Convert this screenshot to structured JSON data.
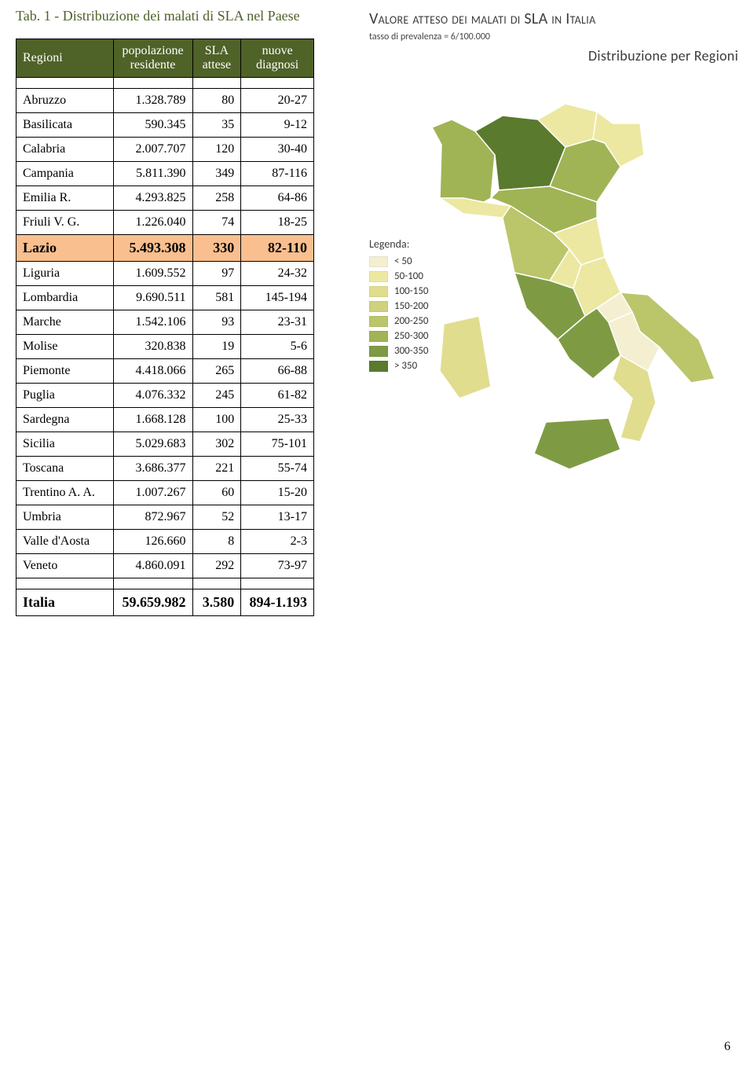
{
  "table": {
    "title": "Tab. 1 - Distribuzione dei malati di SLA nel Paese",
    "columns": [
      "Regioni",
      "popolazione residente",
      "SLA attese",
      "nuove diagnosi"
    ],
    "highlight_region": "Lazio",
    "rows": [
      {
        "region": "Abruzzo",
        "pop": "1.328.789",
        "sla": "80",
        "diag": "20-27"
      },
      {
        "region": "Basilicata",
        "pop": "590.345",
        "sla": "35",
        "diag": "9-12"
      },
      {
        "region": "Calabria",
        "pop": "2.007.707",
        "sla": "120",
        "diag": "30-40"
      },
      {
        "region": "Campania",
        "pop": "5.811.390",
        "sla": "349",
        "diag": "87-116"
      },
      {
        "region": "Emilia R.",
        "pop": "4.293.825",
        "sla": "258",
        "diag": "64-86"
      },
      {
        "region": "Friuli V. G.",
        "pop": "1.226.040",
        "sla": "74",
        "diag": "18-25"
      },
      {
        "region": "Lazio",
        "pop": "5.493.308",
        "sla": "330",
        "diag": "82-110"
      },
      {
        "region": "Liguria",
        "pop": "1.609.552",
        "sla": "97",
        "diag": "24-32"
      },
      {
        "region": "Lombardia",
        "pop": "9.690.511",
        "sla": "581",
        "diag": "145-194"
      },
      {
        "region": "Marche",
        "pop": "1.542.106",
        "sla": "93",
        "diag": "23-31"
      },
      {
        "region": "Molise",
        "pop": "320.838",
        "sla": "19",
        "diag": "5-6"
      },
      {
        "region": "Piemonte",
        "pop": "4.418.066",
        "sla": "265",
        "diag": "66-88"
      },
      {
        "region": "Puglia",
        "pop": "4.076.332",
        "sla": "245",
        "diag": "61-82"
      },
      {
        "region": "Sardegna",
        "pop": "1.668.128",
        "sla": "100",
        "diag": "25-33"
      },
      {
        "region": "Sicilia",
        "pop": "5.029.683",
        "sla": "302",
        "diag": "75-101"
      },
      {
        "region": "Toscana",
        "pop": "3.686.377",
        "sla": "221",
        "diag": "55-74"
      },
      {
        "region": "Trentino A. A.",
        "pop": "1.007.267",
        "sla": "60",
        "diag": "15-20"
      },
      {
        "region": "Umbria",
        "pop": "872.967",
        "sla": "52",
        "diag": "13-17"
      },
      {
        "region": "Valle d'Aosta",
        "pop": "126.660",
        "sla": "8",
        "diag": "2-3"
      },
      {
        "region": "Veneto",
        "pop": "4.860.091",
        "sla": "292",
        "diag": "73-97"
      }
    ],
    "total": {
      "region": "Italia",
      "pop": "59.659.982",
      "sla": "3.580",
      "diag": "894-1.193"
    }
  },
  "map": {
    "title": "Valore atteso dei malati di SLA in Italia",
    "subtitle": "Distribuzione per Regioni",
    "prevalence": "tasso di prevalenza = 6/100.000",
    "legend_title": "Legenda:",
    "legend": [
      {
        "label": "< 50",
        "color": "#f4efd0"
      },
      {
        "label": "50-100",
        "color": "#ece8a1"
      },
      {
        "label": "100-150",
        "color": "#e0dd8f"
      },
      {
        "label": "150-200",
        "color": "#cfd17c"
      },
      {
        "label": "200-250",
        "color": "#bbc56a"
      },
      {
        "label": "250-300",
        "color": "#a0b455"
      },
      {
        "label": "300-350",
        "color": "#7e9b44"
      },
      {
        "label": "> 350",
        "color": "#5a7a2e"
      }
    ],
    "regions": {
      "valle_d_aosta": "#f4efd0",
      "piemonte": "#a0b455",
      "lombardia": "#5a7a2e",
      "trentino": "#ece8a1",
      "veneto": "#a0b455",
      "friuli": "#ece8a1",
      "liguria": "#ece8a1",
      "emilia": "#a0b455",
      "toscana": "#bbc56a",
      "marche": "#ece8a1",
      "umbria": "#ece8a1",
      "lazio": "#7e9b44",
      "abruzzo": "#ece8a1",
      "molise": "#f4efd0",
      "campania": "#7e9b44",
      "puglia": "#bbc56a",
      "basilicata": "#f4efd0",
      "calabria": "#e0dd8f",
      "sicilia": "#7e9b44",
      "sardegna": "#e0dd8f"
    }
  },
  "page_number": "6"
}
